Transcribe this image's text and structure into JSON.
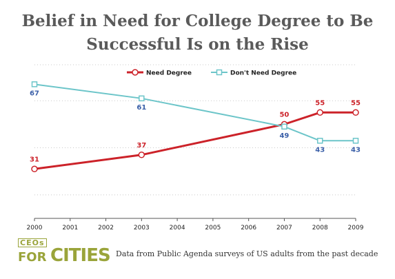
{
  "title_line1": "Belief in Need for College Degree to Be",
  "title_line2": "Successful Is on the Rise",
  "source": "Data from Public Agenda surveys of US adults from the past decade",
  "logo": {
    "top": "CEOs",
    "for": "FOR",
    "cities": "CITIES"
  },
  "colors": {
    "need": "#cc2229",
    "dont_need": "#6cc5c9",
    "dont_need_label": "#3a5fa8",
    "grid": "#c8c8c8",
    "logo": "#9aa43a"
  },
  "chart_data": {
    "type": "line",
    "x": [
      2000,
      2001,
      2002,
      2003,
      2004,
      2005,
      2006,
      2007,
      2008,
      2009
    ],
    "xlim": [
      2000,
      2009
    ],
    "ylim": [
      10,
      75
    ],
    "grid": true,
    "legend_position": "top-right",
    "series": [
      {
        "name": "Need Degree",
        "color": "#cc2229",
        "marker": "circle",
        "x": [
          2000,
          2003,
          2007,
          2008,
          2009
        ],
        "values": [
          31,
          37,
          50,
          55,
          55
        ]
      },
      {
        "name": "Don't Need Degree",
        "color": "#6cc5c9",
        "marker": "square",
        "x": [
          2000,
          2003,
          2007,
          2008,
          2009
        ],
        "values": [
          67,
          61,
          49,
          43,
          43
        ]
      }
    ]
  }
}
